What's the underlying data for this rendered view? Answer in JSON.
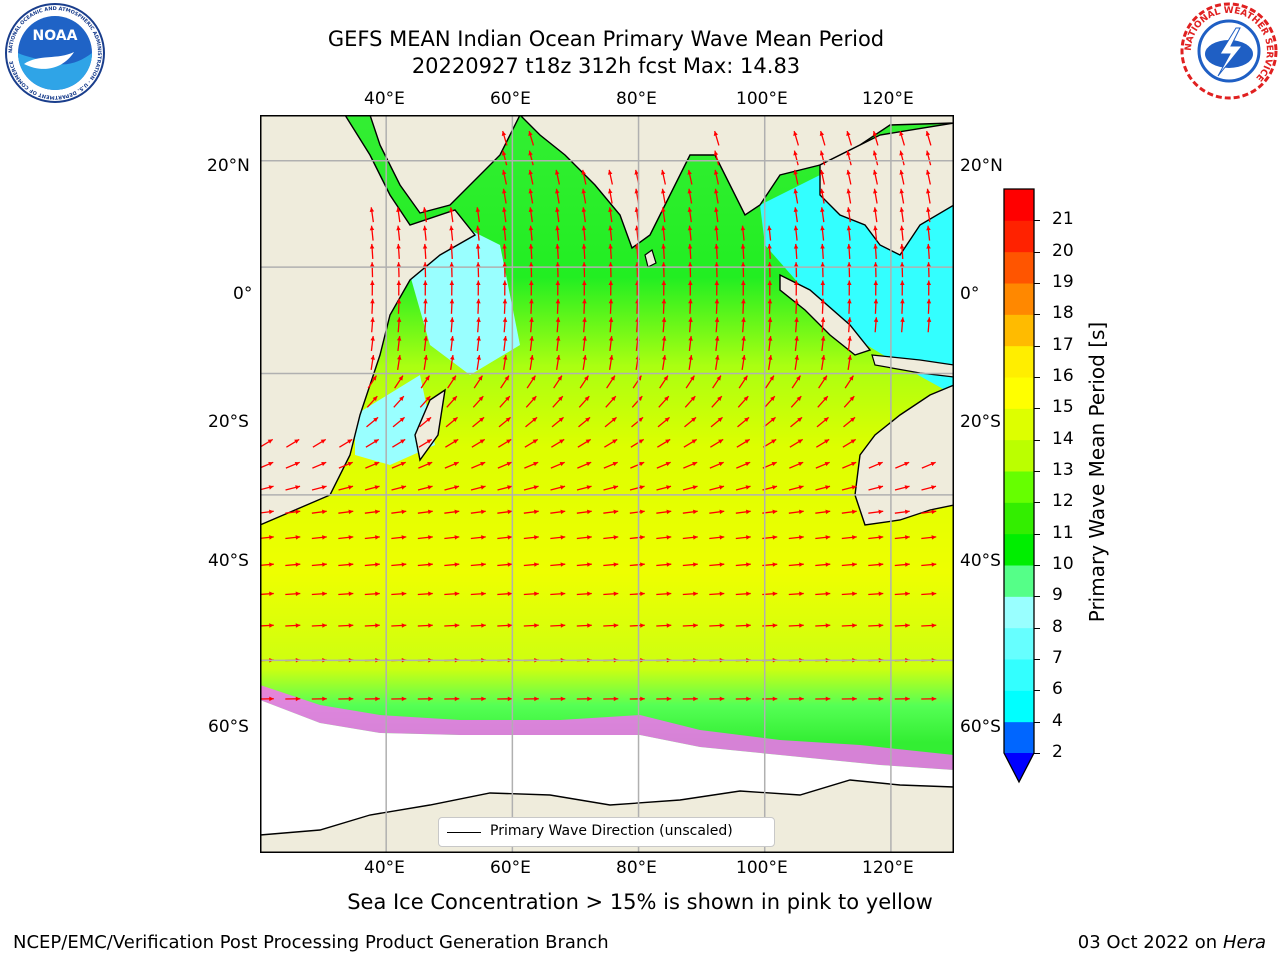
{
  "header": {
    "title_line1": "GEFS MEAN Indian Ocean Primary Wave Mean Period",
    "title_line2": "20220927 t18z 312h fcst   Max: 14.83"
  },
  "logos": {
    "noaa_text": "NOAA",
    "noaa_ring": "NATIONAL OCEANIC AND ATMOSPHERIC ADMINISTRATION · U.S. DEPARTMENT OF COMMERCE",
    "nws_ring": "NATIONAL WEATHER SERVICE"
  },
  "map": {
    "lon_labels": [
      "40°E",
      "60°E",
      "80°E",
      "100°E",
      "120°E"
    ],
    "lat_labels": [
      "20°N",
      "0°",
      "20°S",
      "40°S",
      "60°S"
    ],
    "lon_range": [
      20,
      130
    ],
    "lat_range": [
      -74,
      28
    ],
    "legend_label": "Primary Wave Direction (unscaled)",
    "land_color": "#efecdc",
    "arrow_color": "#ff0000",
    "ice_color": "#ff66ff"
  },
  "colorbar": {
    "label": "Primary Wave Mean Period [s]",
    "ticks": [
      "2",
      "4",
      "6",
      "7",
      "8",
      "9",
      "10",
      "11",
      "12",
      "13",
      "14",
      "15",
      "16",
      "17",
      "18",
      "19",
      "20",
      "21"
    ],
    "colors": [
      "#0066ff",
      "#00ffff",
      "#33ffff",
      "#66ffff",
      "#99ffff",
      "#55ff88",
      "#00ee00",
      "#33ee00",
      "#66ff00",
      "#bbff00",
      "#ddff00",
      "#ffff00",
      "#ffee00",
      "#ffbb00",
      "#ff8800",
      "#ff5500",
      "#ff2200",
      "#ff0000"
    ],
    "extend_color": "#0000ff"
  },
  "footer": {
    "note": "Sea Ice Concentration > 15% is shown in pink to yellow",
    "credit": "NCEP/EMC/Verification Post Processing Product Generation Branch",
    "date": "03 Oct 2022 on ",
    "machine": "Hera"
  }
}
